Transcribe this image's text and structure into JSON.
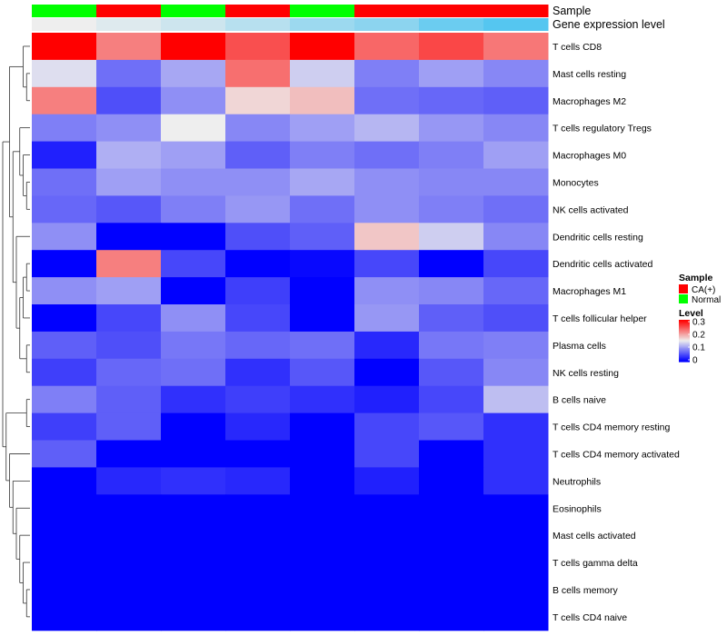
{
  "chart_data": {
    "type": "heatmap",
    "title": "",
    "annotation_rows": [
      {
        "name": "Sample",
        "values": [
          "Normal",
          "CA(+)",
          "Normal",
          "CA(+)",
          "Normal",
          "CA(+)",
          "CA(+)",
          "CA(+)"
        ]
      },
      {
        "name": "Gene expression level",
        "values": [
          0.02,
          0.05,
          0.08,
          0.12,
          0.17,
          0.2,
          0.26,
          0.3
        ]
      }
    ],
    "rows": [
      "T cells CD8",
      "Mast cells resting",
      "Macrophages M2",
      "T cells regulatory  Tregs",
      "Macrophages M0",
      "Monocytes",
      "NK cells activated",
      "Dendritic cells resting",
      "Dendritic cells activated",
      "Macrophages M1",
      "T cells follicular helper",
      "Plasma cells",
      "NK cells resting",
      "B cells naive",
      "T cells CD4 memory resting",
      "T cells CD4 memory activated",
      "Neutrophils",
      "Eosinophils",
      "Mast cells activated",
      "T cells gamma delta",
      "B cells memory",
      "T cells CD4 naive"
    ],
    "values": [
      [
        0.3,
        0.22,
        0.3,
        0.25,
        0.3,
        0.235,
        0.255,
        0.225
      ],
      [
        0.14,
        0.07,
        0.105,
        0.23,
        0.13,
        0.08,
        0.1,
        0.085
      ],
      [
        0.22,
        0.05,
        0.09,
        0.165,
        0.18,
        0.07,
        0.065,
        0.06
      ],
      [
        0.08,
        0.09,
        0.15,
        0.085,
        0.1,
        0.115,
        0.095,
        0.085
      ],
      [
        0.02,
        0.11,
        0.1,
        0.06,
        0.08,
        0.07,
        0.08,
        0.1
      ],
      [
        0.07,
        0.1,
        0.09,
        0.09,
        0.105,
        0.09,
        0.085,
        0.085
      ],
      [
        0.065,
        0.055,
        0.08,
        0.095,
        0.07,
        0.09,
        0.08,
        0.07
      ],
      [
        0.09,
        0.0,
        0.0,
        0.05,
        0.06,
        0.175,
        0.13,
        0.085
      ],
      [
        0.0,
        0.22,
        0.045,
        0.0,
        0.005,
        0.045,
        0.0,
        0.045
      ],
      [
        0.09,
        0.1,
        0.0,
        0.04,
        0.0,
        0.09,
        0.085,
        0.065
      ],
      [
        0.0,
        0.045,
        0.09,
        0.045,
        0.0,
        0.095,
        0.06,
        0.05
      ],
      [
        0.06,
        0.05,
        0.075,
        0.065,
        0.07,
        0.025,
        0.075,
        0.08
      ],
      [
        0.04,
        0.065,
        0.07,
        0.03,
        0.055,
        0.0,
        0.055,
        0.085
      ],
      [
        0.08,
        0.06,
        0.03,
        0.04,
        0.03,
        0.02,
        0.045,
        0.12
      ],
      [
        0.04,
        0.06,
        0.0,
        0.025,
        0.0,
        0.045,
        0.055,
        0.03
      ],
      [
        0.06,
        0.0,
        0.0,
        0.0,
        0.0,
        0.045,
        0.0,
        0.03
      ],
      [
        0.0,
        0.025,
        0.03,
        0.025,
        0.0,
        0.02,
        0.0,
        0.03
      ],
      [
        0.0,
        0.0,
        0.0,
        0.0,
        0.0,
        0.0,
        0.0,
        0.0
      ],
      [
        0.0,
        0.0,
        0.0,
        0.0,
        0.0,
        0.0,
        0.0,
        0.0
      ],
      [
        0.0,
        0.0,
        0.0,
        0.0,
        0.0,
        0.0,
        0.0,
        0.0
      ],
      [
        0.0,
        0.0,
        0.0,
        0.0,
        0.0,
        0.0,
        0.0,
        0.0
      ],
      [
        0.0,
        0.0,
        0.0,
        0.0,
        0.0,
        0.0,
        0.0,
        0.0
      ]
    ],
    "dendrogram": {
      "side": "left",
      "tree": [
        [
          [
            0,
            [
              1,
              2
            ]
          ],
          [
            [
              3,
              [
                4,
                [
                  5,
                  6
                ]
              ]
            ],
            [
              7,
              [
                [
                  [
                    8,
                    9
                  ],
                  10
                ],
                [
                  11,
                  12
                ]
              ]
            ]
          ]
        ],
        [
          [
            13,
            14
          ],
          [
            15,
            [
              16,
              [
                17,
                [
                  18,
                  [
                    19,
                    [
                      20,
                      21
                    ]
                  ]
                ]
              ]
            ]
          ]
        ]
      ]
    },
    "legend": {
      "position": "right",
      "sample": {
        "title": "Sample",
        "items": [
          {
            "label": "CA(+)",
            "color": "#ff0000"
          },
          {
            "label": "Normal",
            "color": "#00ff00"
          }
        ]
      },
      "level": {
        "title": "Level",
        "ticks": [
          "0.3",
          "0.2",
          "0.1",
          "0"
        ],
        "range": [
          0,
          0.3
        ]
      }
    },
    "colors": {
      "low": "#0000ff",
      "mid": "#eeeeee",
      "high": "#ff0000",
      "annot_low": "#eeeeee",
      "annot_high": "#55c6f0",
      "CA(+)": "#ff0000",
      "Normal": "#00ff00"
    }
  }
}
